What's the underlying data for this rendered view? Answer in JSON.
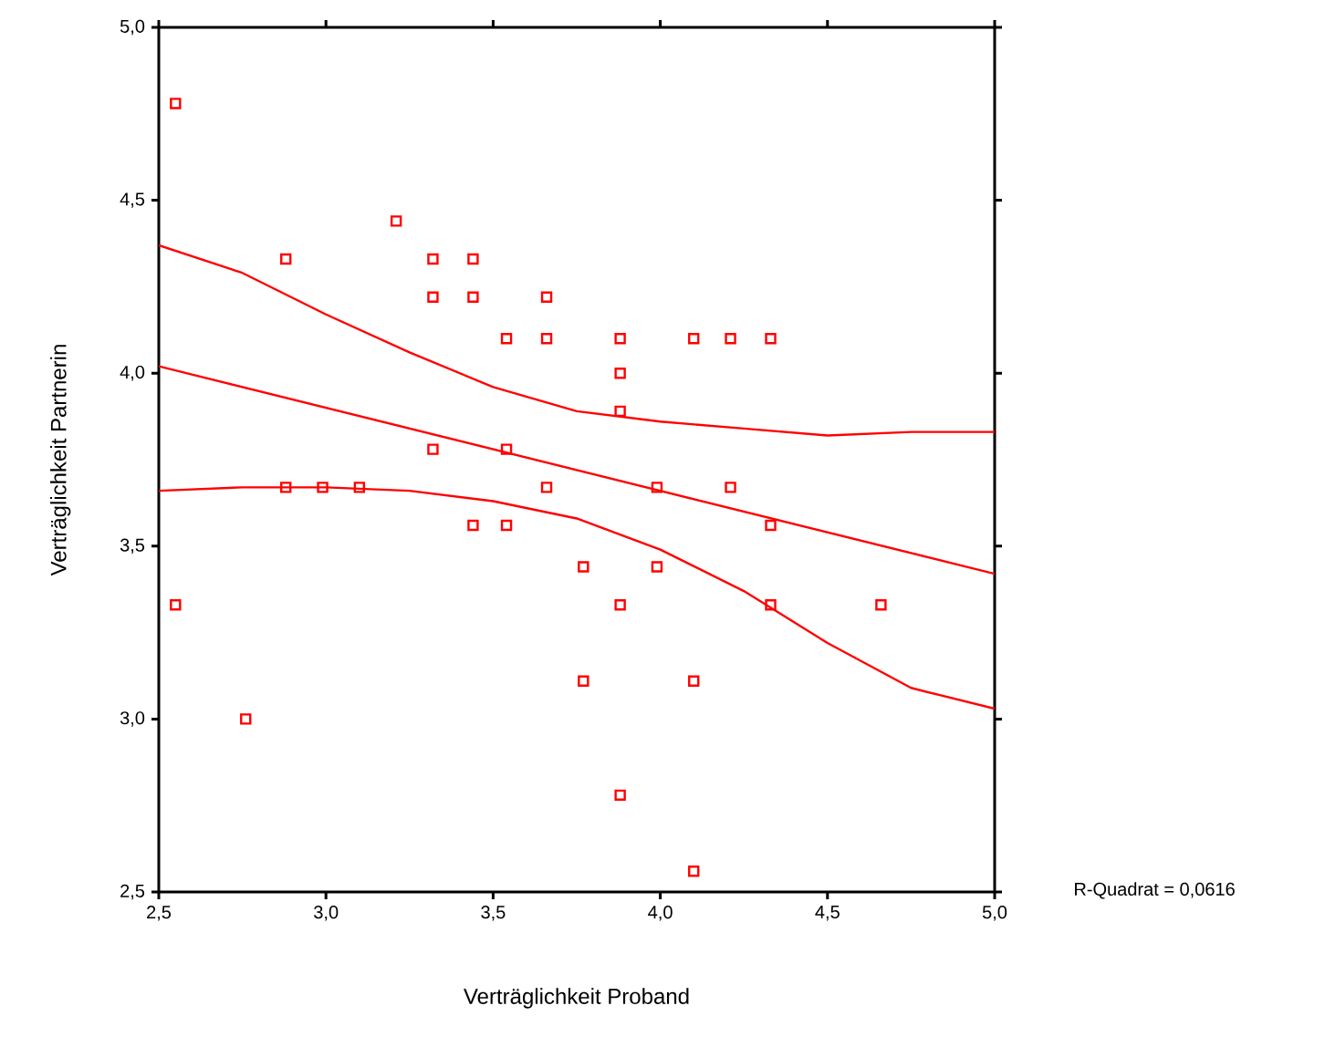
{
  "chart_data": {
    "type": "scatter",
    "xlabel": "Verträglichkeit Proband",
    "ylabel": "Verträglichkeit Partnerin",
    "annotations": [
      "R-Quadrat = 0,0616"
    ],
    "xlim": [
      2.5,
      5.0
    ],
    "ylim": [
      2.5,
      5.0
    ],
    "xticks": [
      {
        "value": 2.5,
        "label": "2,5"
      },
      {
        "value": 3.0,
        "label": "3,0"
      },
      {
        "value": 3.5,
        "label": "3,5"
      },
      {
        "value": 4.0,
        "label": "4,0"
      },
      {
        "value": 4.5,
        "label": "4,5"
      },
      {
        "value": 5.0,
        "label": "5,0"
      }
    ],
    "yticks": [
      {
        "value": 2.5,
        "label": "2,5"
      },
      {
        "value": 3.0,
        "label": "3,0"
      },
      {
        "value": 3.5,
        "label": "3,5"
      },
      {
        "value": 4.0,
        "label": "4,0"
      },
      {
        "value": 4.5,
        "label": "4,5"
      },
      {
        "value": 5.0,
        "label": "5,0"
      }
    ],
    "grid": false,
    "series": [
      {
        "marker": "square",
        "color": "#ff0000",
        "x": [
          2.55,
          3.21,
          2.88,
          3.32,
          3.44,
          3.32,
          3.44,
          3.66,
          3.54,
          3.66,
          3.88,
          4.1,
          4.21,
          4.33,
          3.88,
          3.88,
          3.32,
          3.54,
          2.88,
          2.99,
          3.1,
          3.66,
          3.99,
          4.21,
          3.44,
          3.54,
          4.33,
          3.77,
          3.99,
          2.55,
          3.88,
          4.33,
          4.66,
          3.77,
          4.1,
          2.76,
          3.88,
          4.1
        ],
        "values": [
          4.78,
          4.44,
          4.33,
          4.33,
          4.33,
          4.22,
          4.22,
          4.22,
          4.1,
          4.1,
          4.1,
          4.1,
          4.1,
          4.1,
          4.0,
          3.89,
          3.78,
          3.78,
          3.67,
          3.67,
          3.67,
          3.67,
          3.67,
          3.67,
          3.56,
          3.56,
          3.56,
          3.44,
          3.44,
          3.33,
          3.33,
          3.33,
          3.33,
          3.11,
          3.11,
          3.0,
          2.78,
          2.56
        ]
      },
      {
        "type": "line",
        "marker": "none",
        "color": "#ff0000",
        "x": [
          2.5,
          5.0
        ],
        "values": [
          4.02,
          3.42
        ]
      },
      {
        "type": "line",
        "marker": "none",
        "color": "#ff0000",
        "x": [
          2.5,
          2.75,
          3.0,
          3.25,
          3.5,
          3.75,
          4.0,
          4.25,
          4.5,
          4.75,
          5.0
        ],
        "values": [
          4.37,
          4.29,
          4.17,
          4.06,
          3.96,
          3.89,
          3.86,
          3.84,
          3.82,
          3.83,
          3.83
        ]
      },
      {
        "type": "line",
        "marker": "none",
        "color": "#ff0000",
        "x": [
          2.5,
          2.75,
          3.0,
          3.25,
          3.5,
          3.75,
          4.0,
          4.25,
          4.5,
          4.75,
          5.0
        ],
        "values": [
          3.66,
          3.67,
          3.67,
          3.66,
          3.63,
          3.58,
          3.49,
          3.37,
          3.22,
          3.09,
          3.03
        ]
      }
    ]
  }
}
